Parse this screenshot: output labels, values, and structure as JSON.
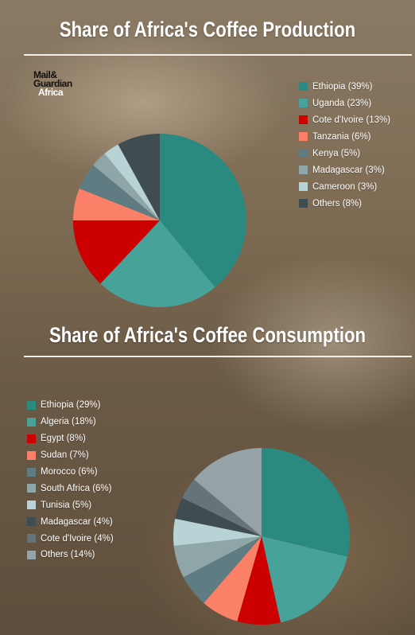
{
  "brand": {
    "line1": "Mail&",
    "line2": "Guardian",
    "line3": "Africa"
  },
  "chart_data": [
    {
      "type": "pie",
      "title": "Share of Africa's Coffee Production",
      "legend_position": "right",
      "slices": [
        {
          "label": "Ethiopia (39%)",
          "value": 39,
          "color": "#2a8a80"
        },
        {
          "label": "Uganda (23%)",
          "value": 23,
          "color": "#47a39a"
        },
        {
          "label": "Cote d'Ivoire (13%)",
          "value": 13,
          "color": "#cc0000"
        },
        {
          "label": "Tanzania (6%)",
          "value": 6,
          "color": "#fa8068"
        },
        {
          "label": "Kenya (5%)",
          "value": 5,
          "color": "#5e7c82"
        },
        {
          "label": "Madagascar (3%)",
          "value": 3,
          "color": "#8fa6a8"
        },
        {
          "label": "Cameroon (3%)",
          "value": 3,
          "color": "#b7d3d6"
        },
        {
          "label": "Others (8%)",
          "value": 8,
          "color": "#3f4d51"
        }
      ]
    },
    {
      "type": "pie",
      "title": "Share of Africa's Coffee Consumption",
      "legend_position": "left",
      "slices": [
        {
          "label": "Ethiopia (29%)",
          "value": 29,
          "color": "#2a8a80"
        },
        {
          "label": "Algeria (18%)",
          "value": 18,
          "color": "#47a39a"
        },
        {
          "label": "Egypt (8%)",
          "value": 8,
          "color": "#cc0000"
        },
        {
          "label": "Sudan (7%)",
          "value": 7,
          "color": "#fa8068"
        },
        {
          "label": "Morocco (6%)",
          "value": 6,
          "color": "#5e7c82"
        },
        {
          "label": "South Africa (6%)",
          "value": 6,
          "color": "#8fa6a8"
        },
        {
          "label": "Tunisia (5%)",
          "value": 5,
          "color": "#b7d3d6"
        },
        {
          "label": "Madagascar (4%)",
          "value": 4,
          "color": "#3f4d51"
        },
        {
          "label": "Cote d'Ivoire (4%)",
          "value": 4,
          "color": "#66747a"
        },
        {
          "label": "Others (14%)",
          "value": 14,
          "color": "#95a3a7"
        }
      ]
    }
  ]
}
